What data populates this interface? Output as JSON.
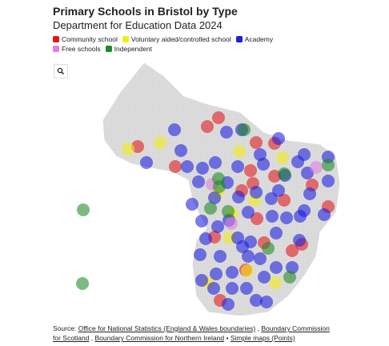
{
  "header": {
    "title": "Primary Schools in Bristol by Type",
    "subtitle": "Department for Education Data 2024"
  },
  "legend": [
    {
      "label": "Community school",
      "color": "#e3161b"
    },
    {
      "label": "Voluntary aided/controlled school",
      "color": "#f3ee12"
    },
    {
      "label": "Academy",
      "color": "#1c1ee0"
    },
    {
      "label": "Free schools",
      "color": "#e07ee0"
    },
    {
      "label": "Independent",
      "color": "#1e8a22"
    }
  ],
  "source": [
    {
      "text": "Source:"
    },
    {
      "link": "Office for National Statistics (England & Wales boundaries)"
    },
    {
      "text": ","
    },
    {
      "link": "Boundary Commission for Scotland"
    },
    {
      "text": ","
    },
    {
      "link": "Boundary Commission for Northern Ireland"
    },
    {
      "text": "•"
    },
    {
      "link": "Simple maps (Points)"
    }
  ]
}
